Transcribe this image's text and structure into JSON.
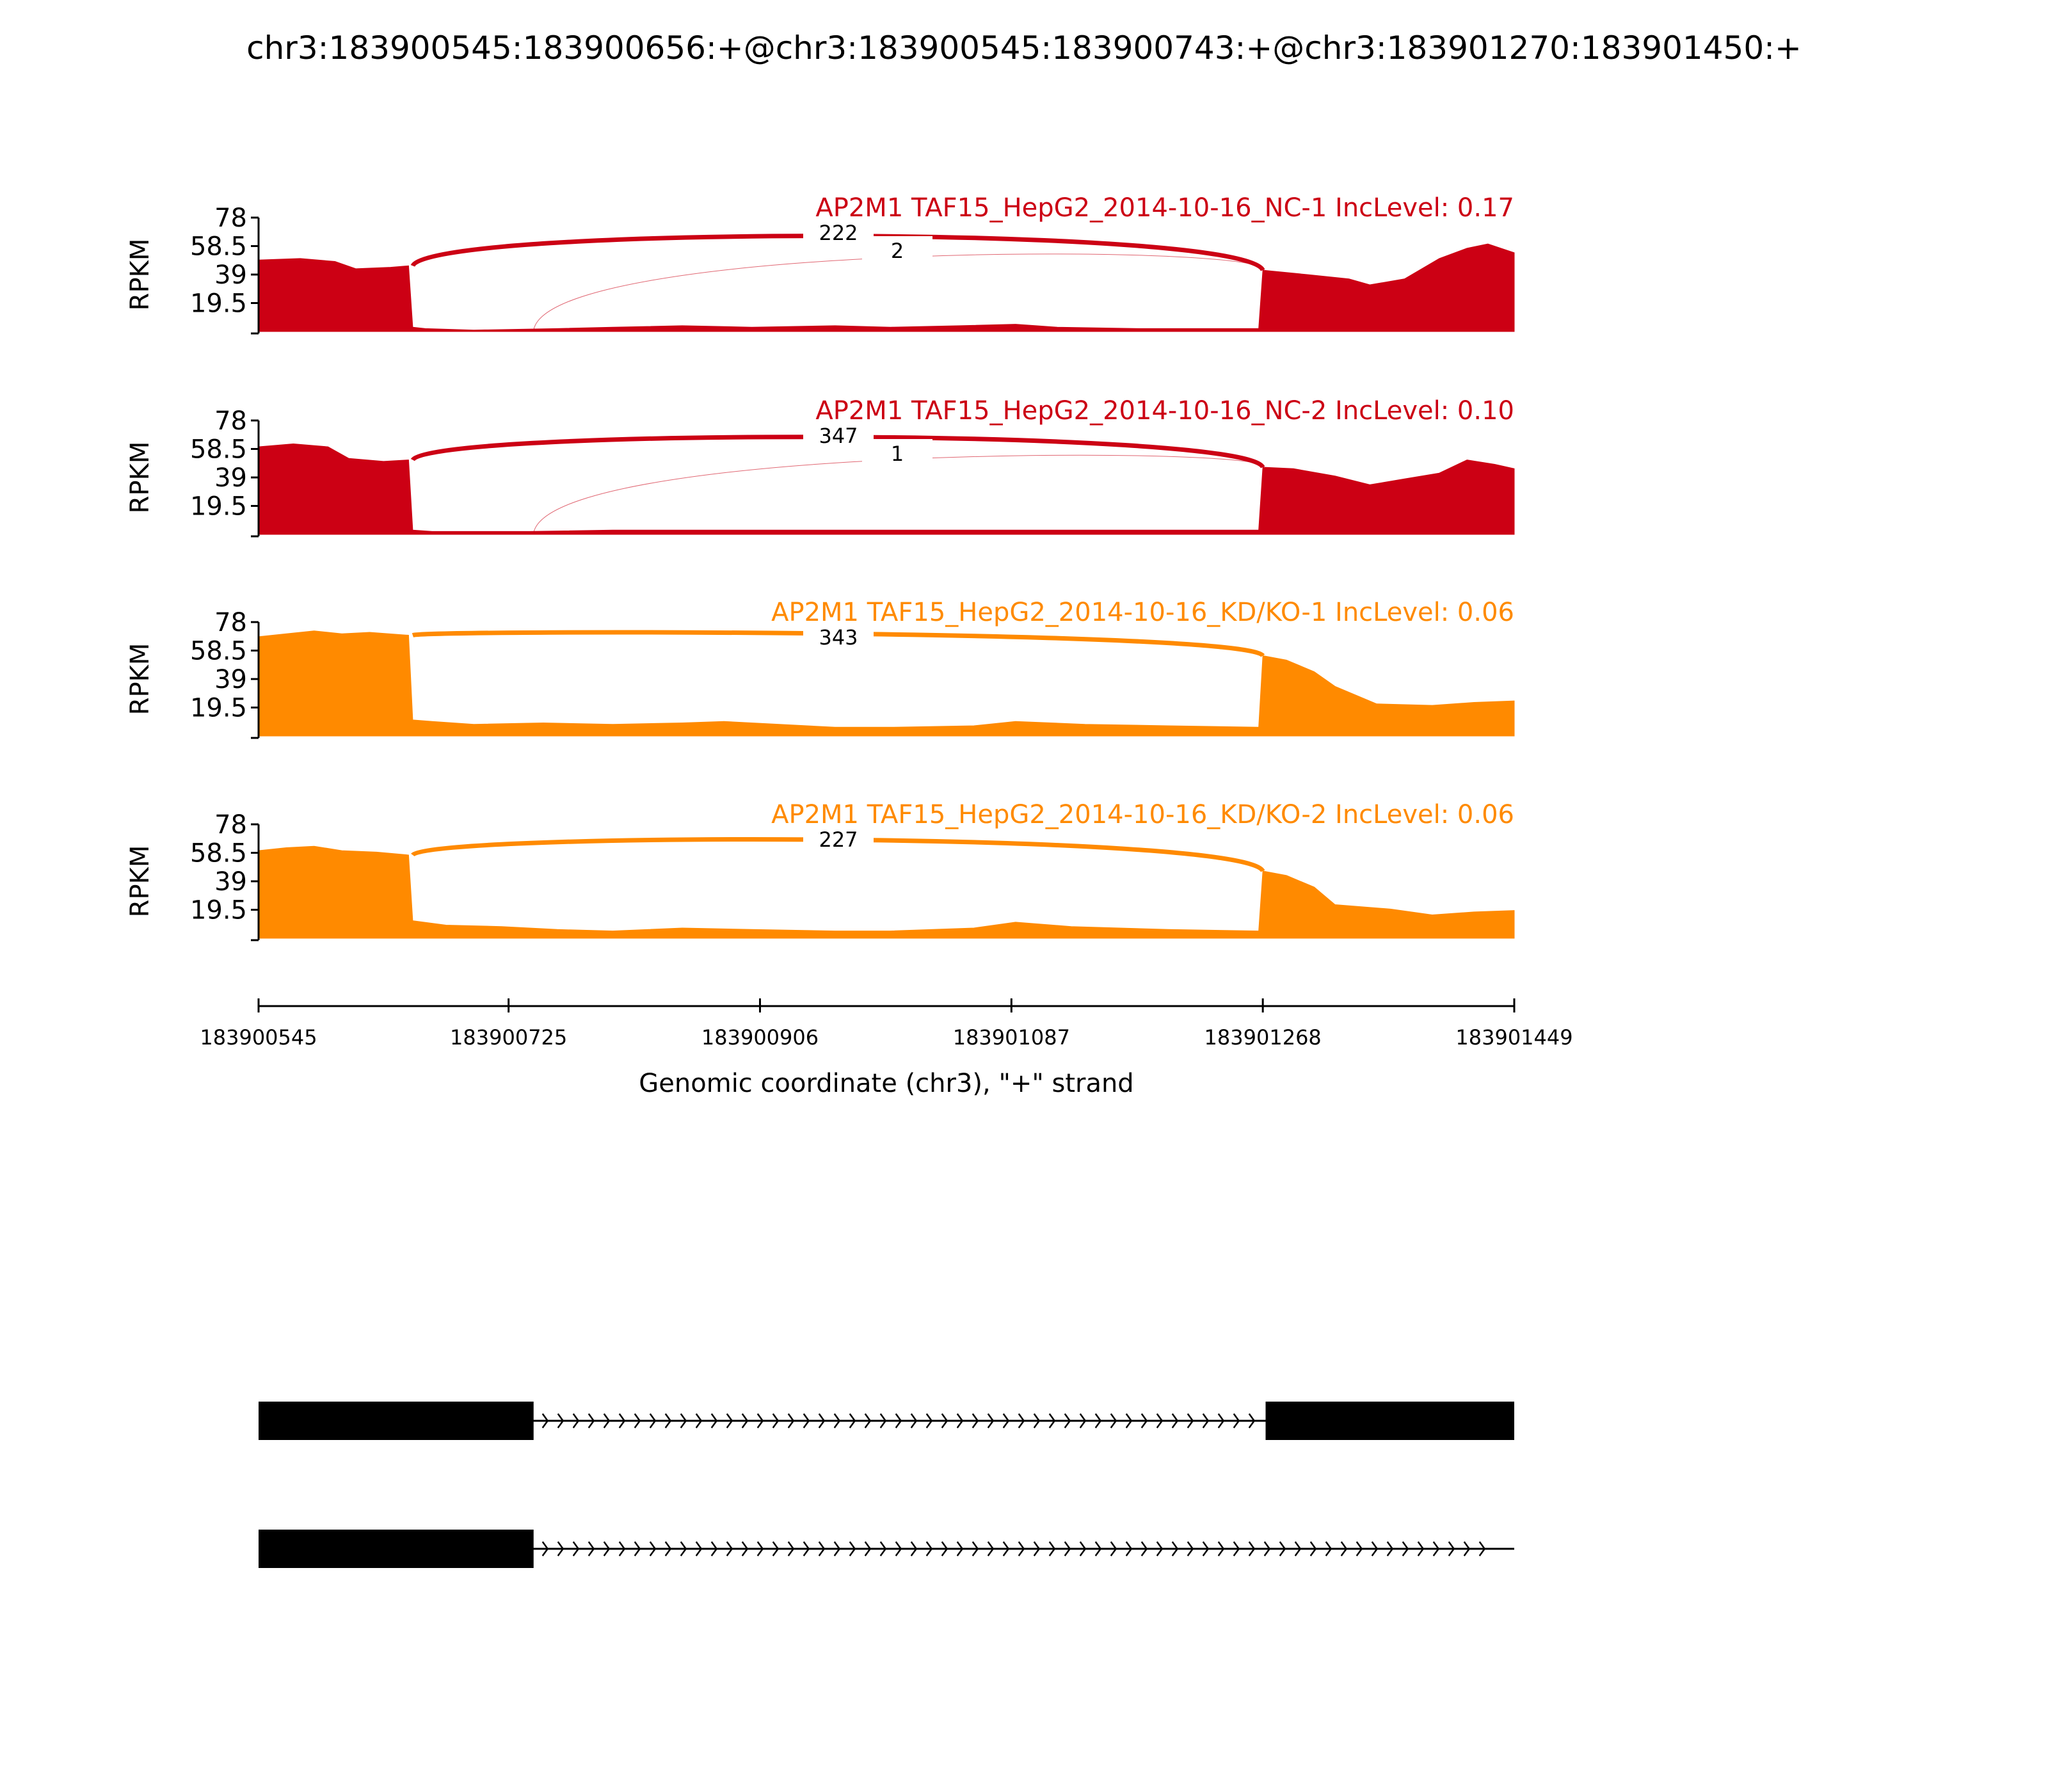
{
  "title": "chr3:183900545:183900656:+@chr3:183900545:183900743:+@chr3:183901270:183901450:+",
  "colors": {
    "nc": "#cc0014",
    "kd": "#ff8a00",
    "axis": "#000000",
    "gene": "#000000"
  },
  "chart_data": {
    "type": "area",
    "title": "chr3:183900545:183900656:+@chr3:183900545:183900743:+@chr3:183901270:183901450:+",
    "ylabel": "RPKM",
    "xlabel": "Genomic coordinate (chr3), \"+\" strand",
    "ylim": [
      0,
      78
    ],
    "xlim": [
      183900545,
      183901449
    ],
    "xticks": [
      "183900545",
      "183900725",
      "183900906",
      "183901087",
      "183901268",
      "183901449"
    ],
    "xtick_values": [
      183900545,
      183900725,
      183900906,
      183901087,
      183901268,
      183901449
    ],
    "yticks": [
      "78",
      "58.5",
      "39",
      "19.5"
    ],
    "ytick_values": [
      78,
      58.5,
      39,
      19.5
    ],
    "grid": false,
    "tracks": [
      {
        "name": "AP2M1 TAF15_HepG2_2014-10-16_NC-1 IncLevel: 0.17",
        "group": "nc",
        "coverage": [
          [
            183900545,
            49
          ],
          [
            183900575,
            50
          ],
          [
            183900600,
            48
          ],
          [
            183900615,
            43
          ],
          [
            183900640,
            44
          ],
          [
            183900653,
            45
          ],
          [
            183900656,
            3
          ],
          [
            183900665,
            2
          ],
          [
            183900700,
            1
          ],
          [
            183900760,
            2
          ],
          [
            183900800,
            3
          ],
          [
            183900850,
            4
          ],
          [
            183900900,
            3
          ],
          [
            183900960,
            4
          ],
          [
            183901000,
            3
          ],
          [
            183901050,
            4
          ],
          [
            183901090,
            5
          ],
          [
            183901120,
            3
          ],
          [
            183901180,
            2
          ],
          [
            183901265,
            2
          ],
          [
            183901268,
            42
          ],
          [
            183901300,
            39
          ],
          [
            183901330,
            36
          ],
          [
            183901345,
            32
          ],
          [
            183901370,
            36
          ],
          [
            183901395,
            50
          ],
          [
            183901415,
            57
          ],
          [
            183901430,
            60
          ],
          [
            183901449,
            54
          ]
        ],
        "junctions": [
          {
            "from": 183900656,
            "to": 183901268,
            "count": "222"
          },
          {
            "from": 183900743,
            "to": 183901268,
            "count": "2"
          }
        ]
      },
      {
        "name": "AP2M1 TAF15_HepG2_2014-10-16_NC-2 IncLevel: 0.10",
        "group": "nc",
        "coverage": [
          [
            183900545,
            60
          ],
          [
            183900570,
            62
          ],
          [
            183900595,
            60
          ],
          [
            183900610,
            52
          ],
          [
            183900635,
            50
          ],
          [
            183900653,
            51
          ],
          [
            183900656,
            3
          ],
          [
            183900670,
            2
          ],
          [
            183900740,
            2
          ],
          [
            183900800,
            3
          ],
          [
            183900870,
            3
          ],
          [
            183900950,
            3
          ],
          [
            183901050,
            3
          ],
          [
            183901150,
            3
          ],
          [
            183901265,
            3
          ],
          [
            183901268,
            46
          ],
          [
            183901290,
            45
          ],
          [
            183901320,
            40
          ],
          [
            183901345,
            34
          ],
          [
            183901370,
            38
          ],
          [
            183901395,
            42
          ],
          [
            183901415,
            51
          ],
          [
            183901435,
            48
          ],
          [
            183901449,
            45
          ]
        ],
        "junctions": [
          {
            "from": 183900656,
            "to": 183901268,
            "count": "347"
          },
          {
            "from": 183900743,
            "to": 183901268,
            "count": "1"
          }
        ]
      },
      {
        "name": "AP2M1 TAF15_HepG2_2014-10-16_KD/KO-1 IncLevel: 0.06",
        "group": "kd",
        "coverage": [
          [
            183900545,
            68
          ],
          [
            183900565,
            70
          ],
          [
            183900585,
            72
          ],
          [
            183900605,
            70
          ],
          [
            183900625,
            71
          ],
          [
            183900653,
            69
          ],
          [
            183900656,
            11
          ],
          [
            183900670,
            10
          ],
          [
            183900700,
            8
          ],
          [
            183900750,
            9
          ],
          [
            183900800,
            8
          ],
          [
            183900850,
            9
          ],
          [
            183900880,
            10
          ],
          [
            183900920,
            8
          ],
          [
            183900960,
            6
          ],
          [
            183901000,
            6
          ],
          [
            183901060,
            7
          ],
          [
            183901090,
            10
          ],
          [
            183901140,
            8
          ],
          [
            183901200,
            7
          ],
          [
            183901265,
            6
          ],
          [
            183901268,
            55
          ],
          [
            183901285,
            52
          ],
          [
            183901305,
            44
          ],
          [
            183901320,
            34
          ],
          [
            183901350,
            22
          ],
          [
            183901390,
            21
          ],
          [
            183901420,
            23
          ],
          [
            183901449,
            24
          ]
        ],
        "junctions": [
          {
            "from": 183900656,
            "to": 183901268,
            "count": "343"
          }
        ]
      },
      {
        "name": "AP2M1 TAF15_HepG2_2014-10-16_KD/KO-2 IncLevel: 0.06",
        "group": "kd",
        "coverage": [
          [
            183900545,
            60
          ],
          [
            183900565,
            62
          ],
          [
            183900585,
            63
          ],
          [
            183900605,
            60
          ],
          [
            183900630,
            59
          ],
          [
            183900653,
            57
          ],
          [
            183900656,
            12
          ],
          [
            183900680,
            9
          ],
          [
            183900720,
            8
          ],
          [
            183900760,
            6
          ],
          [
            183900800,
            5
          ],
          [
            183900850,
            7
          ],
          [
            183900900,
            6
          ],
          [
            183900960,
            5
          ],
          [
            183901000,
            5
          ],
          [
            183901060,
            7
          ],
          [
            183901090,
            11
          ],
          [
            183901130,
            8
          ],
          [
            183901200,
            6
          ],
          [
            183901265,
            5
          ],
          [
            183901268,
            46
          ],
          [
            183901285,
            43
          ],
          [
            183901305,
            35
          ],
          [
            183901320,
            23
          ],
          [
            183901360,
            20
          ],
          [
            183901390,
            16
          ],
          [
            183901420,
            18
          ],
          [
            183901449,
            19
          ]
        ],
        "junctions": [
          {
            "from": 183900656,
            "to": 183901268,
            "count": "227"
          }
        ]
      }
    ],
    "gene_models": [
      {
        "exons": [
          [
            183900545,
            183900743
          ],
          [
            183901270,
            183901449
          ]
        ]
      },
      {
        "exons": [
          [
            183900545,
            183900743
          ]
        ]
      }
    ]
  }
}
